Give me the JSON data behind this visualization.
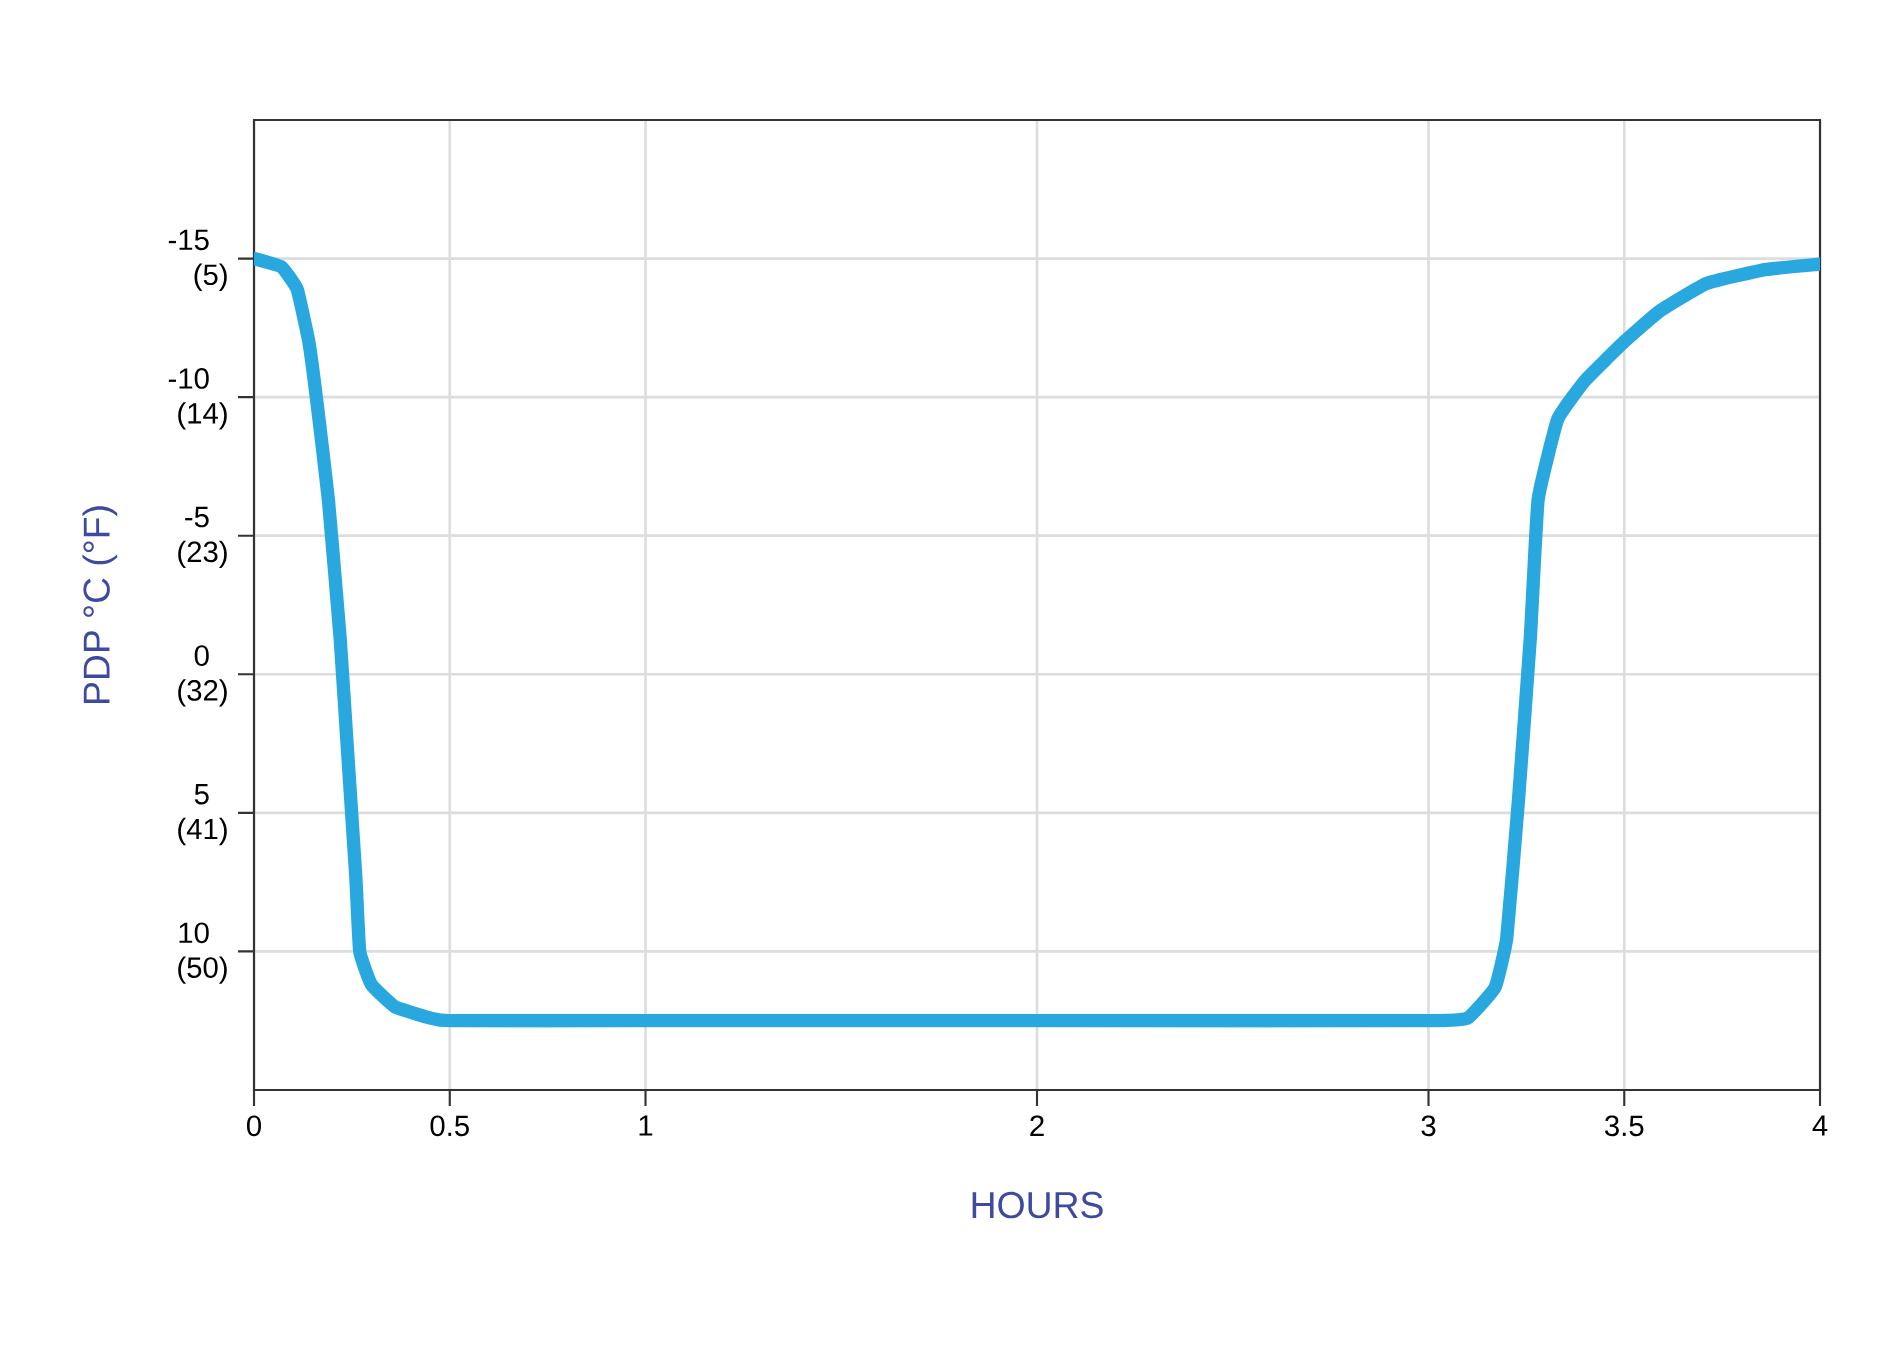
{
  "chart_data": {
    "type": "line",
    "xlabel": "HOURS",
    "ylabel": "PDP °C  (°F)",
    "xlim": [
      0,
      4
    ],
    "ylim": [
      15,
      -20
    ],
    "y2lim": [
      59,
      -4
    ],
    "xticks": [
      0,
      0.5,
      1,
      2,
      3,
      3.5,
      4
    ],
    "yticks": [
      -15,
      -10,
      -5,
      0,
      5,
      10
    ],
    "y2ticks": [
      {
        "value": 5,
        "label": "(5)"
      },
      {
        "value": 14,
        "label": "(14)"
      },
      {
        "value": 23,
        "label": "(23)"
      },
      {
        "value": 32,
        "label": "(32)"
      },
      {
        "value": 41,
        "label": "(41)"
      },
      {
        "value": 50,
        "label": "(50)"
      }
    ],
    "grid": true,
    "series": [
      {
        "color": "#29a8e0",
        "x": [
          0,
          0.07,
          0.11,
          0.14,
          0.16,
          0.19,
          0.22,
          0.24,
          0.26,
          0.27,
          0.3,
          0.36,
          0.45,
          0.5,
          1,
          2,
          3,
          3.1,
          3.17,
          3.2,
          3.23,
          3.26,
          3.28,
          3.33,
          3.4,
          3.5,
          3.59,
          3.71,
          3.86,
          4
        ],
        "values": [
          -15,
          -14.7,
          -13.9,
          -12,
          -9.9,
          -6.3,
          -1.3,
          3,
          7.3,
          10,
          11.2,
          12,
          12.4,
          12.5,
          12.5,
          12.5,
          12.5,
          12.4,
          11.3,
          9.5,
          4.5,
          -1.3,
          -6.3,
          -9.2,
          -10.6,
          -12,
          -13.1,
          -14.1,
          -14.6,
          -14.8
        ]
      }
    ]
  }
}
